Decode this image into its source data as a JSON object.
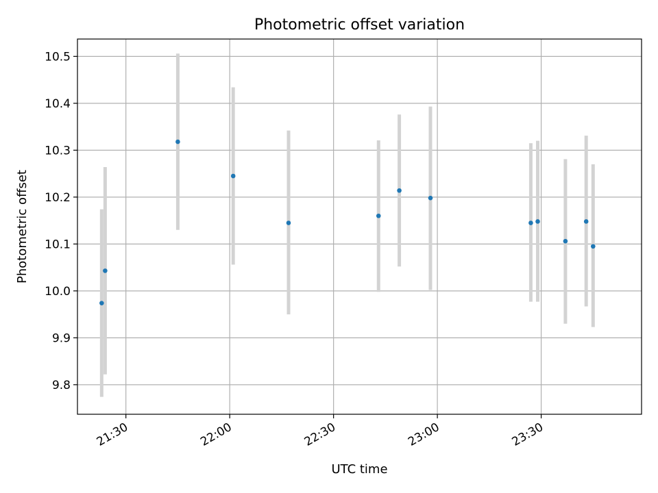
{
  "chart_data": {
    "type": "scatter",
    "title": "Photometric offset variation",
    "xlabel": "UTC time",
    "ylabel": "Photometric offset",
    "xlim": [
      "21:16",
      "23:59"
    ],
    "ylim": [
      9.737,
      10.537
    ],
    "x_ticks": [
      "21:30",
      "22:00",
      "22:30",
      "23:00",
      "23:30"
    ],
    "y_ticks": [
      9.8,
      9.9,
      10.0,
      10.1,
      10.2,
      10.3,
      10.4,
      10.5
    ],
    "grid": true,
    "series_color": "#1f77b4",
    "errorbar_color": "#d3d3d3",
    "points": [
      {
        "x": "21:23",
        "y": 9.974,
        "lo": 9.774,
        "hi": 10.174
      },
      {
        "x": "21:24",
        "y": 10.043,
        "lo": 9.822,
        "hi": 10.264
      },
      {
        "x": "21:45",
        "y": 10.318,
        "lo": 10.13,
        "hi": 10.506
      },
      {
        "x": "22:01",
        "y": 10.245,
        "lo": 10.056,
        "hi": 10.434
      },
      {
        "x": "22:17",
        "y": 10.145,
        "lo": 9.95,
        "hi": 10.342
      },
      {
        "x": "22:43",
        "y": 10.16,
        "lo": 9.998,
        "hi": 10.321
      },
      {
        "x": "22:49",
        "y": 10.214,
        "lo": 10.052,
        "hi": 10.376
      },
      {
        "x": "22:58",
        "y": 10.198,
        "lo": 10.002,
        "hi": 10.393
      },
      {
        "x": "23:27",
        "y": 10.145,
        "lo": 9.977,
        "hi": 10.315
      },
      {
        "x": "23:29",
        "y": 10.148,
        "lo": 9.977,
        "hi": 10.32
      },
      {
        "x": "23:37",
        "y": 10.106,
        "lo": 9.93,
        "hi": 10.281
      },
      {
        "x": "23:43",
        "y": 10.148,
        "lo": 9.967,
        "hi": 10.331
      },
      {
        "x": "23:45",
        "y": 10.095,
        "lo": 9.923,
        "hi": 10.27
      }
    ]
  }
}
